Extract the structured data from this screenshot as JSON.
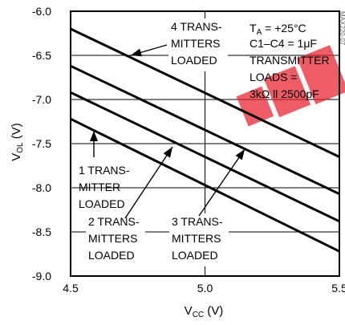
{
  "chart_data": {
    "type": "line",
    "x": [
      4.5,
      5.5
    ],
    "xlim": [
      4.5,
      5.5
    ],
    "ylim": [
      -9.0,
      -6.0
    ],
    "grid": true,
    "x_ticks": [
      "4.5",
      "5.0",
      "5.5"
    ],
    "y_ticks": [
      "-6.0",
      "-6.5",
      "-7.0",
      "-7.5",
      "-8.0",
      "-8.5",
      "-9.0"
    ],
    "xlabel": {
      "base": "V",
      "sub": "CC",
      "unit": " (V)"
    },
    "ylabel": {
      "base": "V",
      "sub": "OL",
      "unit": " (V)"
    },
    "series": [
      {
        "name": "4 TRANSMITTERS LOADED",
        "values": [
          -6.2,
          -7.65
        ]
      },
      {
        "name": "3 TRANSMITTERS LOADED",
        "values": [
          -6.62,
          -8.07
        ]
      },
      {
        "name": "2 TRANSMITTERS LOADED",
        "values": [
          -6.92,
          -8.38
        ]
      },
      {
        "name": "1 TRANSMITTER LOADED",
        "values": [
          -7.22,
          -8.72
        ]
      }
    ],
    "annotations": [
      {
        "id": "s4",
        "lines": [
          "4 TRANS-",
          "MITTERS",
          "LOADED"
        ]
      },
      {
        "id": "s1",
        "lines": [
          "1 TRANS-",
          "MITTER",
          "LOADED"
        ]
      },
      {
        "id": "s2",
        "lines": [
          "2 TRANS-",
          "MITTERS",
          "LOADED"
        ]
      },
      {
        "id": "s3",
        "lines": [
          "3 TRANS-",
          "MITTERS",
          "LOADED"
        ]
      }
    ],
    "conditions": {
      "temp": {
        "base": "T",
        "sub": "A",
        "rest": " = +25°C"
      },
      "cap": "C1–C4 = 1μF",
      "load1": "TRANSMITTER",
      "load2": "LOADS =",
      "load3": "3kΩ ll 2500pF"
    },
    "side_code": "MAX220-07",
    "colors": {
      "watermark": "#e8202a",
      "line": "#000000",
      "grid": "#000000"
    }
  }
}
